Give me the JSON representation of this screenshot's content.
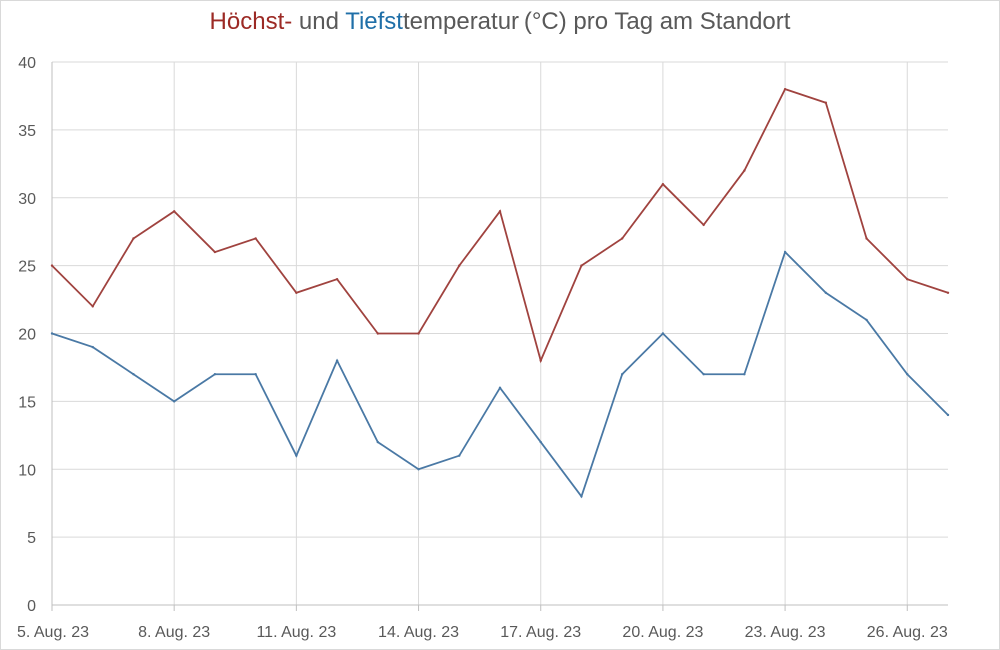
{
  "chart_data": {
    "type": "line",
    "title_parts": {
      "high": "Höchst-",
      "mid": " und ",
      "low": "Tiefst",
      "rest": "temperatur (°C) pro Tag am Standort"
    },
    "title": "Höchst- und Tiefsttemperatur (°C) pro Tag am Standort",
    "xlabel": "",
    "ylabel": "",
    "ylim": [
      0,
      40
    ],
    "yticks": [
      0,
      5,
      10,
      15,
      20,
      25,
      30,
      35,
      40
    ],
    "x": [
      "5. Aug. 23",
      "6. Aug. 23",
      "7. Aug. 23",
      "8. Aug. 23",
      "9. Aug. 23",
      "10. Aug. 23",
      "11. Aug. 23",
      "12. Aug. 23",
      "13. Aug. 23",
      "14. Aug. 23",
      "15. Aug. 23",
      "16. Aug. 23",
      "17. Aug. 23",
      "18. Aug. 23",
      "19. Aug. 23",
      "20. Aug. 23",
      "21. Aug. 23",
      "22. Aug. 23",
      "23. Aug. 23",
      "24. Aug. 23",
      "25. Aug. 23",
      "26. Aug. 23",
      "27. Aug. 23"
    ],
    "xtick_labels": [
      "5. Aug. 23",
      "8. Aug. 23",
      "11. Aug. 23",
      "14. Aug. 23",
      "17. Aug. 23",
      "20. Aug. 23",
      "23. Aug. 23",
      "26. Aug. 23"
    ],
    "series": [
      {
        "key": "high",
        "color": "#a0433f",
        "values": [
          25,
          22,
          27,
          29,
          26,
          27,
          23,
          24,
          20,
          20,
          25,
          29,
          18,
          25,
          27,
          31,
          28,
          32,
          38,
          37,
          27,
          24,
          23
        ]
      },
      {
        "key": "low",
        "color": "#4a79a5",
        "values": [
          20,
          19,
          17,
          15,
          17,
          17,
          11,
          18,
          12,
          10,
          11,
          16,
          12,
          8,
          17,
          20,
          17,
          17,
          26,
          23,
          21,
          17,
          14
        ]
      }
    ],
    "grid": true,
    "grid_color": "#d9d9d9",
    "axis_color": "#bfbfbf"
  }
}
